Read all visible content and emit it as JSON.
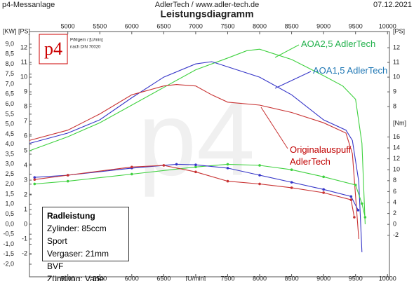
{
  "chart_data": {
    "type": "line",
    "header_left": "p4-Messanlage",
    "header_center": "AdlerTech / www.adler-tech.de",
    "header_right": "07.12.2021",
    "title": "Leistungsdiagramm",
    "logo": {
      "text": "p4",
      "note1": "P/Mgem / [U/min]",
      "note2": "nach DIN 70020"
    },
    "xlim": [
      4400,
      10030
    ],
    "xticks": [
      5000,
      5500,
      6000,
      6500,
      {
        "value": 7000,
        "label": "[U/min]"
      },
      7500,
      8000,
      8500,
      9000,
      9500,
      10000
    ],
    "xticks_top": [
      5000,
      5500,
      6000,
      6500,
      7000,
      7500,
      8000,
      8500,
      9000,
      9500,
      10000
    ],
    "ylim": [
      -3.57,
      13.1
    ],
    "y_unit": "[PS]",
    "yticks": [
      12,
      11,
      10,
      9,
      8,
      7,
      6,
      5,
      4,
      3,
      2,
      1,
      0,
      -1,
      -2
    ],
    "ylim_kw": [
      -2.63,
      9.63
    ],
    "y_kw_unit": "[KW]",
    "yticks_kw": [
      {
        "value": 9.0,
        "label": "9,0"
      },
      {
        "value": 8.5,
        "label": "8,5"
      },
      {
        "value": 8.0,
        "label": "8,0"
      },
      {
        "value": 7.5,
        "label": "7,5"
      },
      {
        "value": 7.0,
        "label": "7,0"
      },
      {
        "value": 6.5,
        "label": "6,5"
      },
      {
        "value": 6.0,
        "label": "6,0"
      },
      {
        "value": 5.5,
        "label": "5,5"
      },
      {
        "value": 5.0,
        "label": "5,0"
      },
      {
        "value": 4.5,
        "label": "4,5"
      },
      {
        "value": 4.0,
        "label": "4,0"
      },
      {
        "value": 3.5,
        "label": "3,5"
      },
      {
        "value": 3.0,
        "label": "3,0"
      },
      {
        "value": 2.5,
        "label": "2,5"
      },
      {
        "value": 2.0,
        "label": "2,0"
      },
      {
        "value": 1.5,
        "label": "1,5"
      },
      {
        "value": 1.0,
        "label": "1,0"
      },
      {
        "value": 0.5,
        "label": "0,5"
      },
      {
        "value": 0.0,
        "label": "0,0"
      },
      {
        "value": -0.5,
        "label": "-0,5"
      },
      {
        "value": -1.0,
        "label": "-1,0"
      },
      {
        "value": -1.5,
        "label": "-1,5"
      },
      {
        "value": -2.0,
        "label": "-2,0"
      }
    ],
    "y2lim": [
      -3.57,
      13.1
    ],
    "y2_unit": "[PS]",
    "y2ticks": [
      12,
      11,
      10,
      9,
      8
    ],
    "y3lim": [
      -9.6,
      35.3
    ],
    "y3_unit": "[Nm]",
    "y3ticks": [
      16,
      14,
      12,
      10,
      8,
      6,
      4,
      2,
      0,
      -2
    ],
    "series": [
      {
        "name": "AOA2,5 AdlerTech",
        "color": "#3fd13f",
        "axis": "y",
        "x": [
          4400,
          5000,
          5500,
          6000,
          6500,
          7000,
          7500,
          7800,
          8000,
          8500,
          9000,
          9300,
          9500,
          9600,
          9650
        ],
        "values": [
          5.0,
          5.95,
          6.9,
          8.1,
          9.3,
          10.5,
          11.3,
          11.8,
          11.9,
          11.2,
          10.1,
          9.4,
          8.5,
          5.5,
          0
        ]
      },
      {
        "name": "AOA1,5 AdlerTech",
        "color": "#3535c8",
        "axis": "y",
        "x": [
          4400,
          5000,
          5500,
          6000,
          6500,
          7000,
          7250,
          7500,
          8000,
          8500,
          9000,
          9350,
          9450,
          9550,
          9600
        ],
        "values": [
          5.5,
          6.2,
          7.1,
          8.6,
          10.0,
          10.9,
          11.05,
          10.7,
          10.0,
          8.8,
          7.1,
          6.4,
          5.7,
          2.9,
          -1.9
        ]
      },
      {
        "name": "Originalauspuff\nAdlerTech",
        "color": "#c83232",
        "axis": "y",
        "x": [
          4400,
          5000,
          5500,
          6000,
          6500,
          6700,
          7000,
          7250,
          7500,
          8000,
          8500,
          9000,
          9350,
          9450,
          9550
        ],
        "values": [
          5.7,
          6.4,
          7.5,
          8.8,
          9.4,
          9.5,
          9.4,
          8.8,
          8.3,
          8.1,
          7.6,
          6.9,
          6.2,
          4.8,
          -1.0
        ]
      },
      {
        "color": "#3fd13f",
        "axis": "y3",
        "x": [
          4480,
          5000,
          6000,
          7000,
          7500,
          8000,
          8500,
          9000,
          9500,
          9600,
          9650
        ],
        "values": [
          7.4,
          7.9,
          9.2,
          10.5,
          11.0,
          10.8,
          10.0,
          8.7,
          7.2,
          3.8,
          1.3
        ]
      },
      {
        "color": "#3535c8",
        "axis": "y3",
        "x": [
          4480,
          5000,
          6000,
          6700,
          7000,
          7500,
          8000,
          8500,
          9000,
          9430,
          9540
        ],
        "values": [
          8.6,
          9.0,
          10.3,
          11.0,
          10.9,
          10.3,
          9.0,
          7.7,
          6.4,
          5.1,
          2.6
        ]
      },
      {
        "color": "#c83232",
        "axis": "y3",
        "x": [
          4480,
          5000,
          6000,
          6500,
          7000,
          7500,
          8000,
          8500,
          9000,
          9430,
          9480
        ],
        "values": [
          8.2,
          9.0,
          10.5,
          10.8,
          9.6,
          7.9,
          7.4,
          6.7,
          5.8,
          4.5,
          1.3
        ]
      }
    ],
    "info_box": {
      "title": "Radleistung",
      "lines": [
        "Zylinder: 85ccm Sport",
        "Vergaser: 21mm BVF",
        "Zündung: Vape"
      ]
    }
  }
}
